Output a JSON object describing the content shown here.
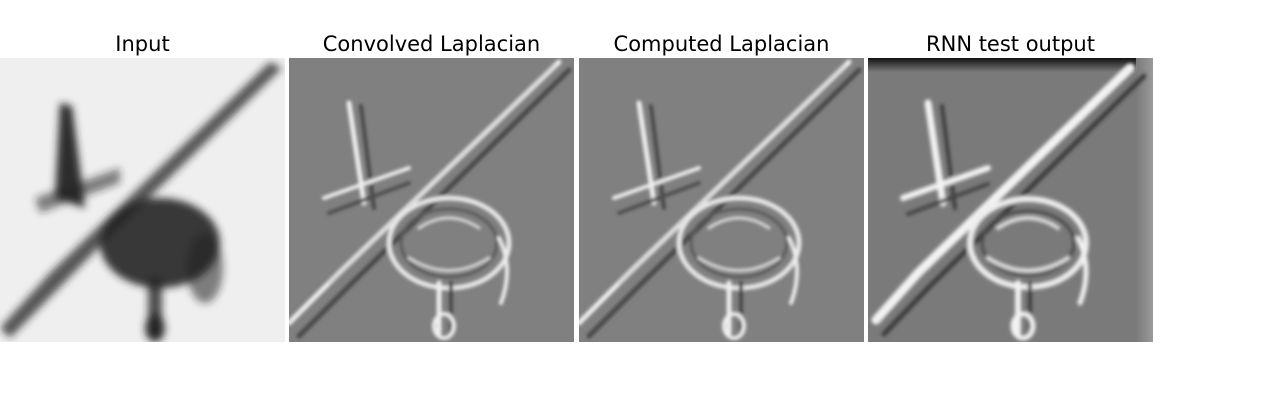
{
  "panels": [
    {
      "title": "Input",
      "kind": "input",
      "colors": {
        "bg": "#efefef",
        "stroke": "#222222"
      }
    },
    {
      "title": "Convolved Laplacian",
      "kind": "laplacian",
      "colors": {
        "bg": "#808080",
        "light": "#eeeeee",
        "dark": "#4a4a4a"
      }
    },
    {
      "title": "Computed Laplacian",
      "kind": "laplacian",
      "colors": {
        "bg": "#808080",
        "light": "#eeeeee",
        "dark": "#4a4a4a"
      }
    },
    {
      "title": "RNN test output",
      "kind": "rnn",
      "colors": {
        "bg": "#7a7a7a",
        "light": "#f2f2f2",
        "dark": "#3e3e3e",
        "top_band": "#111111"
      }
    }
  ]
}
